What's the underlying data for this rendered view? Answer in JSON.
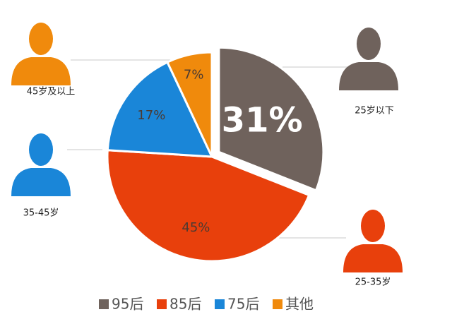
{
  "chart_data": {
    "type": "pie",
    "categories": [
      "95后",
      "85后",
      "75后",
      "其他"
    ],
    "values": [
      31,
      45,
      17,
      7
    ],
    "value_labels": [
      "31%",
      "45%",
      "17%",
      "7%"
    ],
    "colors": [
      "#6f625c",
      "#e8400c",
      "#1a86d8",
      "#f08a0c"
    ],
    "legend": "bottom",
    "annotations": [
      {
        "text": "25岁以下",
        "color": "#6f625c"
      },
      {
        "text": "25-35岁",
        "color": "#e8400c"
      },
      {
        "text": "35-45岁",
        "color": "#1a86d8"
      },
      {
        "text": "45岁及以上",
        "color": "#f08a0c"
      }
    ]
  }
}
